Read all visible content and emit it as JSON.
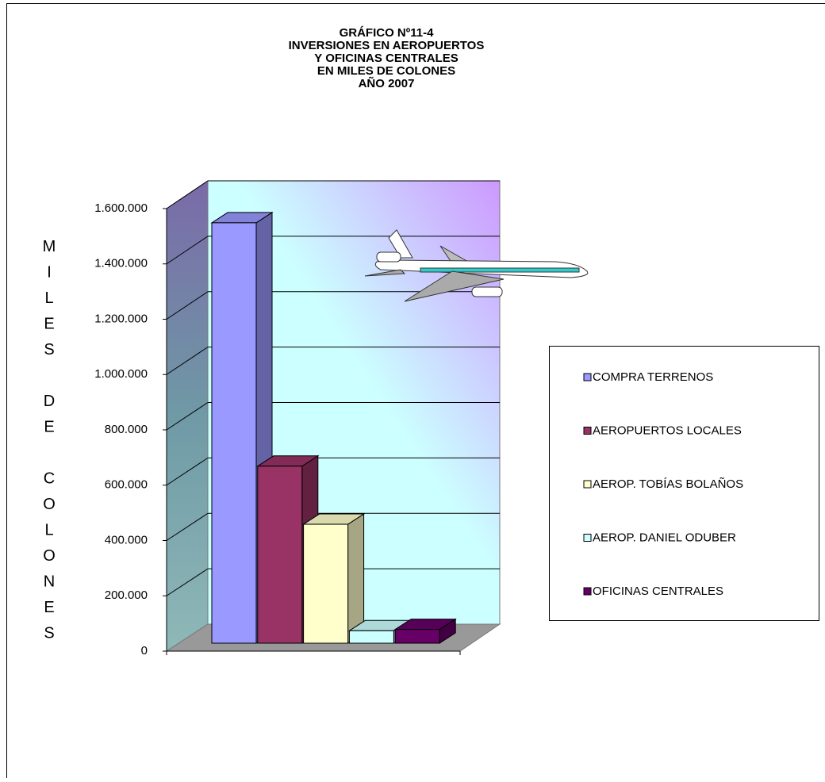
{
  "chart_data": {
    "type": "bar3d",
    "title": [
      "GRÁFICO Nº11-4",
      "INVERSIONES EN AEROPUERTOS",
      "Y OFICINAS CENTRALES",
      "EN MILES DE COLONES",
      "AÑO 2007"
    ],
    "y_label": "MILES DE COLONES",
    "categories": [
      null
    ],
    "series": [
      {
        "name": "COMPRA TERRENOS",
        "color": "#9999ff",
        "values": [
          1520000
        ]
      },
      {
        "name": "AEROPUERTOS LOCALES",
        "color": "#993366",
        "values": [
          640000
        ]
      },
      {
        "name": "AEROP. TOBÍAS BOLAÑOS",
        "color": "#ffffcc",
        "values": [
          430000
        ]
      },
      {
        "name": "AEROP. DANIEL ODUBER",
        "color": "#ccffff",
        "values": [
          45000
        ]
      },
      {
        "name": "OFICINAS CENTRALES",
        "color": "#660066",
        "values": [
          50000
        ]
      }
    ],
    "ylim": [
      0,
      1600000
    ],
    "yticks": [
      0,
      {
        "value": 200000,
        "label": "200.000"
      },
      {
        "value": 400000,
        "label": "400.000"
      },
      {
        "value": 600000,
        "label": "600.000"
      },
      {
        "value": 800000,
        "label": "800.000"
      },
      {
        "value": 1000000,
        "label": "1.000.000"
      },
      {
        "value": 1200000,
        "label": "1.200.000"
      },
      {
        "value": 1400000,
        "label": "1.400.000"
      },
      {
        "value": 1600000,
        "label": "1.600.000"
      }
    ],
    "grid": true,
    "legend": "right"
  }
}
